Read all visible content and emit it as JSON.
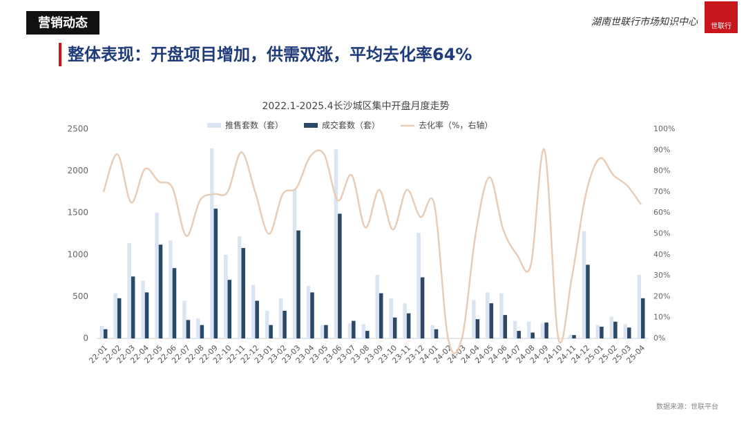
{
  "header": {
    "section": "营销动态",
    "org": "湖南世联行市场知识中心",
    "logo": "世联行"
  },
  "heading": "整体表现：开盘项目增加，供需双涨，平均去化率64%",
  "chart_data": {
    "type": "bar-line",
    "title": "2022.1-2025.4长沙城区集中开盘月度走势",
    "categories": [
      "22-01",
      "22-02",
      "22-03",
      "22-04",
      "22-05",
      "22-06",
      "22-07",
      "22-08",
      "22-09",
      "22-10",
      "22-11",
      "22-12",
      "23-01",
      "23-02",
      "23-03",
      "23-04",
      "23-05",
      "23-06",
      "23-07",
      "23-08",
      "23-09",
      "23-10",
      "23-11",
      "23-12",
      "24-01",
      "24-02",
      "24-03",
      "24-04",
      "24-05",
      "24-06",
      "24-07",
      "24-08",
      "24-09",
      "24-10",
      "24-11",
      "24-12",
      "25-01",
      "25-02",
      "25-03",
      "25-04"
    ],
    "series": [
      {
        "name": "推售套数（套）",
        "type": "bar",
        "color": "#dbe4f3",
        "values": [
          150,
          540,
          1140,
          690,
          1500,
          1170,
          450,
          240,
          2270,
          1000,
          1220,
          640,
          330,
          480,
          1780,
          630,
          160,
          2260,
          180,
          170,
          760,
          480,
          420,
          1260,
          160,
          0,
          0,
          460,
          550,
          540,
          210,
          200,
          180,
          0,
          40,
          1280,
          160,
          260,
          170,
          760
        ]
      },
      {
        "name": "成交套数（套）",
        "type": "bar",
        "color": "#2b4866",
        "values": [
          110,
          480,
          740,
          550,
          1120,
          840,
          220,
          160,
          1550,
          700,
          1080,
          450,
          160,
          330,
          1290,
          550,
          160,
          1490,
          210,
          90,
          540,
          250,
          300,
          730,
          110,
          0,
          0,
          230,
          420,
          280,
          90,
          70,
          190,
          0,
          40,
          880,
          140,
          200,
          130,
          480
        ]
      },
      {
        "name": "去化率（%，右轴）",
        "type": "line",
        "axis": "y2",
        "color": "#e9ccb6",
        "values": [
          70,
          88,
          65,
          81,
          75,
          72,
          49,
          66,
          69,
          70,
          89,
          70,
          50,
          69,
          72,
          87,
          88,
          66,
          78,
          53,
          71,
          52,
          71,
          58,
          64,
          0,
          0,
          50,
          77,
          52,
          40,
          35,
          90,
          0,
          30,
          69,
          86,
          78,
          73,
          64
        ]
      }
    ],
    "ylim": [
      0,
      2500
    ],
    "yticks": [
      0,
      500,
      1000,
      1500,
      2000,
      2500
    ],
    "y2lim": [
      0,
      100
    ],
    "y2ticks": [
      {
        "value": 0,
        "label": "0%"
      },
      {
        "value": 10,
        "label": "10%"
      },
      {
        "value": 20,
        "label": "20%"
      },
      {
        "value": 30,
        "label": "30%"
      },
      {
        "value": 40,
        "label": "40%"
      },
      {
        "value": 50,
        "label": "50%"
      },
      {
        "value": 60,
        "label": "60%"
      },
      {
        "value": 70,
        "label": "70%"
      },
      {
        "value": 80,
        "label": "80%"
      },
      {
        "value": 90,
        "label": "90%"
      },
      {
        "value": 100,
        "label": "100%"
      }
    ],
    "legend": "top"
  },
  "source": "数据来源：世联平台"
}
